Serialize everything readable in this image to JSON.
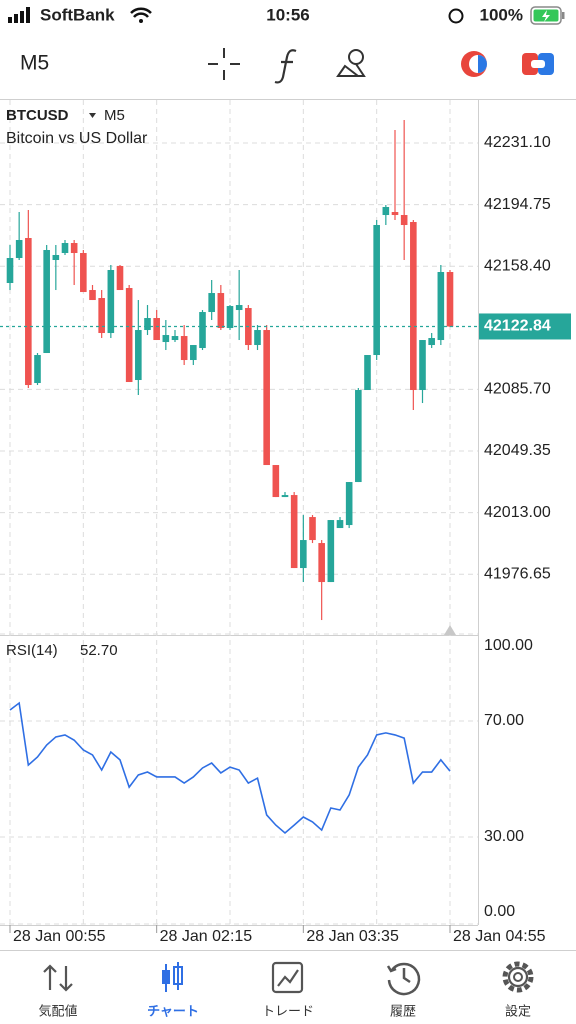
{
  "status_bar": {
    "carrier": "SoftBank",
    "time": "10:56",
    "battery": "100%"
  },
  "toolbar": {
    "timeframe": "M5"
  },
  "chart_data": [
    {
      "type": "candlestick",
      "symbol": "BTCUSD",
      "timeframe": "M5",
      "description": "Bitcoin vs US Dollar",
      "categories": [
        "28 Jan 00:55",
        null,
        null,
        null,
        null,
        null,
        null,
        null,
        null,
        null,
        null,
        null,
        null,
        null,
        null,
        null,
        "28 Jan 02:15",
        null,
        null,
        null,
        null,
        null,
        null,
        null,
        null,
        null,
        null,
        null,
        null,
        null,
        null,
        null,
        "28 Jan 03:35",
        null,
        null,
        null,
        null,
        null,
        null,
        null,
        null,
        null,
        null,
        null,
        null,
        null,
        null,
        null,
        "28 Jan 04:55"
      ],
      "open": [
        42148.49,
        42163.24,
        42175.04,
        42089.48,
        42107.18,
        42162.06,
        42166.19,
        42172.09,
        42166.19,
        42144.35,
        42139.63,
        42118.98,
        42158.52,
        42145.54,
        42091.25,
        42120.75,
        42127.83,
        42113.67,
        42114.85,
        42117.21,
        42103.05,
        42110.13,
        42131.37,
        42142.58,
        42121.93,
        42132.55,
        42133.73,
        42111.9,
        42120.75,
        42041.09,
        42022.2,
        42023.38,
        41980.31,
        42010.4,
        41995.06,
        41972.05,
        42003.91,
        42005.68,
        42031.06,
        42085.35,
        42106.0,
        42188.61,
        42190.38,
        42188.61,
        42184.48,
        42085.35,
        42111.9,
        42114.85,
        42154.98
      ],
      "high": [
        42170.91,
        42190.38,
        42191.56,
        42107.18,
        42170.91,
        42170.91,
        42173.86,
        42173.86,
        42167.96,
        42147.31,
        42144.35,
        42159.11,
        42159.11,
        42147.31,
        42138.45,
        42135.5,
        42132.55,
        42126.65,
        42120.75,
        42123.7,
        42111.9,
        42132.55,
        42150.26,
        42147.31,
        42135.5,
        42156.16,
        42135.5,
        42123.7,
        42123.7,
        42041.09,
        42025.16,
        42025.16,
        42011.58,
        42011.58,
        41996.83,
        42008.63,
        42010.4,
        42031.06,
        42086.53,
        42106.0,
        42185.66,
        42194.51,
        42238.77,
        42244.67,
        42185.66,
        42114.85,
        42118.98,
        42159.11,
        42156.16
      ],
      "low": [
        42144.35,
        42162.06,
        42086.53,
        42088.3,
        42107.18,
        42144.35,
        42165.01,
        42147.31,
        42143.17,
        42138.45,
        42116.03,
        42116.03,
        42144.35,
        42090.07,
        42082.4,
        42117.8,
        42114.85,
        42108.95,
        42113.67,
        42100.1,
        42100.1,
        42108.95,
        42126.65,
        42120.75,
        42120.75,
        42114.85,
        42108.95,
        42108.95,
        42041.09,
        42022.2,
        42022.2,
        41980.31,
        41972.05,
        41995.06,
        41949.63,
        41972.05,
        42003.91,
        42003.91,
        42031.06,
        42085.35,
        42103.05,
        42182.71,
        42185.66,
        42162.06,
        42073.54,
        42077.67,
        42110.13,
        42111.9,
        42122.52
      ],
      "close": [
        42163.24,
        42173.86,
        42088.3,
        42106.0,
        42167.96,
        42165.01,
        42172.09,
        42166.19,
        42143.17,
        42138.45,
        42118.98,
        42156.16,
        42144.35,
        42090.07,
        42120.75,
        42127.83,
        42114.85,
        42117.8,
        42117.21,
        42103.05,
        42111.9,
        42131.37,
        42142.58,
        42121.93,
        42134.91,
        42135.5,
        42111.9,
        42120.75,
        42041.09,
        42022.2,
        42023.38,
        41980.31,
        41996.83,
        41996.83,
        41972.05,
        42008.63,
        42008.63,
        42031.06,
        42085.35,
        42106.0,
        42182.71,
        42193.33,
        42188.61,
        42182.71,
        42085.35,
        42114.85,
        42116.03,
        42154.98,
        42122.84
      ],
      "up_color": "#26a69a",
      "down_color": "#ef5350",
      "ylim": [
        41940.8,
        42256.47
      ],
      "yticks": [
        {
          "value": 42231.1,
          "label": "42231.10"
        },
        42194.75,
        {
          "value": 42158.4,
          "label": "42158.40"
        },
        {
          "value": 42085.7,
          "label": "42085.70"
        },
        42049.35,
        {
          "value": 42013,
          "label": "42013.00"
        },
        41976.65
      ],
      "current_price": 42122.84,
      "grid": true
    },
    {
      "type": "line",
      "title": "RSI(14)",
      "last_value_label": "52.70",
      "color": "#2f6fe4",
      "values": [
        73.8,
        76.2,
        54.8,
        57.6,
        61.7,
        64.5,
        65.2,
        63.4,
        60.0,
        58.3,
        53.1,
        59.3,
        56.6,
        47.2,
        51.4,
        52.4,
        50.7,
        50.7,
        50.7,
        48.6,
        50.7,
        53.8,
        55.5,
        52.1,
        54.1,
        53.1,
        48.6,
        50.3,
        37.6,
        34.1,
        31.4,
        34.1,
        36.9,
        35.2,
        32.4,
        40.0,
        39.3,
        44.5,
        54.1,
        58.3,
        65.2,
        65.9,
        65.2,
        64.1,
        48.6,
        52.4,
        52.4,
        56.6,
        52.7
      ],
      "ylim": [
        0,
        100
      ],
      "yticks": [
        {
          "value": 100,
          "label": "100.00"
        },
        {
          "value": 70,
          "label": "70.00"
        },
        {
          "value": 30,
          "label": "30.00"
        },
        {
          "value": 0,
          "label": "0.00"
        }
      ],
      "grid": true
    }
  ],
  "tab_bar": {
    "tabs": [
      "気配値",
      "チャート",
      "トレード",
      "履歴",
      "設定"
    ],
    "active": 1
  }
}
